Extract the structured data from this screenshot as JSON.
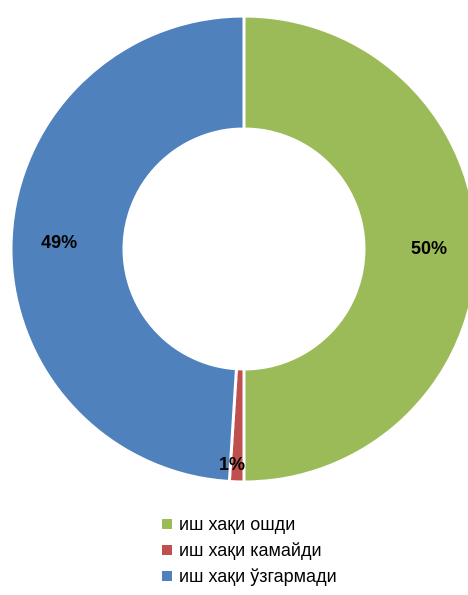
{
  "chart_data": {
    "type": "pie",
    "variant": "donut",
    "title": "",
    "categories": [
      "иш хақи ошди",
      "иш хақи камайди",
      "иш хақи ўзгармади"
    ],
    "values": [
      50,
      1,
      49
    ],
    "data_labels": [
      "50%",
      "1%",
      "49%"
    ],
    "colors": [
      "#9BBB59",
      "#C0504D",
      "#4F81BD"
    ],
    "legend_position": "bottom"
  }
}
